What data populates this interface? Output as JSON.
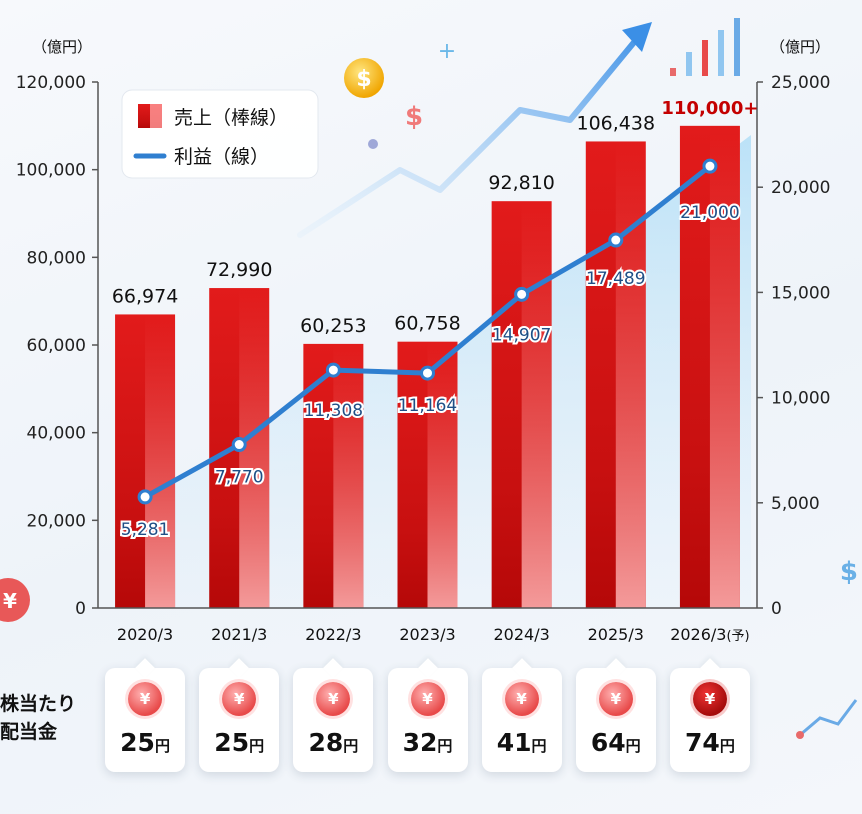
{
  "chart_data": {
    "type": "bar+line",
    "categories": [
      "2020/3",
      "2021/3",
      "2022/3",
      "2023/3",
      "2024/3",
      "2025/3",
      "2026/3"
    ],
    "forecast_suffix": "(予)",
    "series": [
      {
        "name": "売上（棒線）",
        "type": "bar",
        "axis": "left",
        "values": [
          66974,
          72990,
          60253,
          60758,
          92810,
          106438,
          110000
        ],
        "labels": [
          "66,974",
          "72,990",
          "60,253",
          "60,758",
          "92,810",
          "106,438",
          "110,000+"
        ]
      },
      {
        "name": "利益（線）",
        "type": "line",
        "axis": "right",
        "values": [
          5281,
          7770,
          11308,
          11164,
          14907,
          17489,
          21000
        ],
        "labels": [
          "5,281",
          "7,770",
          "11,308",
          "11,164",
          "14,907",
          "17,489",
          "21,000"
        ]
      }
    ],
    "y_left": {
      "unit": "（億円）",
      "min": 0,
      "max": 120000,
      "ticks": [
        0,
        20000,
        40000,
        60000,
        80000,
        100000,
        120000
      ],
      "tick_labels": [
        "0",
        "20,000",
        "40,000",
        "60,000",
        "80,000",
        "100,000",
        "120,000"
      ]
    },
    "y_right": {
      "unit": "（億円）",
      "min": 0,
      "max": 25000,
      "ticks": [
        0,
        5000,
        10000,
        15000,
        20000,
        25000
      ],
      "tick_labels": [
        "0",
        "5,000",
        "10,000",
        "15,000",
        "20,000",
        "25,000"
      ]
    },
    "legend_position": "top-left",
    "grid": false
  },
  "dividends": {
    "title": "株当たり\n配当金",
    "unit": "円",
    "yen_symbol": "¥",
    "values": [
      "25",
      "25",
      "28",
      "32",
      "41",
      "64",
      "74"
    ]
  },
  "colors": {
    "bar_top": "#e01818",
    "bar_bottom": "#ff9a9a",
    "bar_highlight": "#c40000",
    "line": "#2f7fd0",
    "forecast_label": "#c40000"
  }
}
